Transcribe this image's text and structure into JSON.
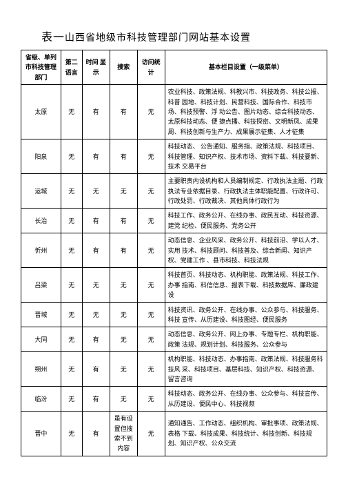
{
  "title_prefix": "表一",
  "title_main": "山西省地级市科技管理部门网站基本设置",
  "headers": {
    "col0": "省级、单列市科技管理部门",
    "col1": "第二语言",
    "col2": "时间 显示",
    "col3": "搜索",
    "col4": "访问统计",
    "col5": "基本栏目设置（一级菜单）"
  },
  "rows": [
    {
      "dept": "太原",
      "lang": "无",
      "time": "有",
      "search": "有",
      "visit": "无",
      "menu": "农业科技、政策法规、科教兴市、科技政务、科技公报、科普 园地、科技计划、民营科技、国际合作、科技市场、科技预警、浮 动公告、图片动态、综合科技动态、太原科技动态、便 捷点播、科技探密、文明新凤、成果周、科技创新与生产力、成果展示征集、人才征集"
    },
    {
      "dept": "阳泉",
      "lang": "无",
      "time": "有",
      "search": "有",
      "visit": "无",
      "menu": "科技动态、   公告通知、服务指、政策法规、科技项目、科技管理、知识产权、技术市场、资料下载、科技要新、技术 交易平台"
    },
    {
      "dept": "运城",
      "lang": "无",
      "time": "无",
      "search": "无",
      "visit": "无",
      "menu": "主要职责内设机构和人员编制规定、行政执法主题、行政执法专业依据目录、行政执法主体职能配置、行政许可、行政处罚、行政裁决、其他具体行政行为"
    },
    {
      "dept": "长治",
      "lang": "无",
      "time": "有",
      "search": "有",
      "visit": "无",
      "menu": "科技工作、政务公开、在线办事、政民互动、科技资源、建党 纪检、便民服务、党务公开"
    },
    {
      "dept": "忻州",
      "lang": "无",
      "time": "有",
      "search": "有",
      "visit": "无",
      "menu": "动态信息、企业风采、政务公开、科技前沿、学以人才、实用 技术、科技顾问、科技普及、综合新闻、知识产权、党建工作 、县市科技、科技法规"
    },
    {
      "dept": "吕梁",
      "lang": "无",
      "time": "无",
      "search": "无",
      "visit": "无",
      "menu": "科技首页、科技动态、机构职能、政策法规、科技工作、办事 指南、科信信息、报表下载、科技数据库、廉政建设"
    },
    {
      "dept": "晋城",
      "lang": "无",
      "time": "无",
      "search": "无",
      "visit": "无",
      "menu": "科技资讯、政务公开、在线办事、公众参与、科技服务、科技 宣传、从历建设、科技图经、便民服务"
    },
    {
      "dept": "大同",
      "lang": "无",
      "time": "有",
      "search": "无",
      "visit": "无",
      "menu": "动态信息、政务公开、网上办事、专题专栏、机构职能、政策 法规、规划计划、科技服务、公众参与"
    },
    {
      "dept": "朔州",
      "lang": "无",
      "time": "有",
      "search": "无",
      "visit": "无",
      "menu": "机构职能、科技动态、办事指南、政策法规、科技服务科技风 采、科技项目、基层科技、知识产权、科技资源、留言咨询"
    },
    {
      "dept": "临汾",
      "lang": "无",
      "time": "有",
      "search": "无",
      "visit": "无",
      "menu": "科技动态、政务公开、在线办事、公众参与、科技宣传、从历建设、便民中心、科技视频"
    },
    {
      "dept": "晋中",
      "lang": "无",
      "time": "有",
      "search": "虽有设置但搜索不到内容",
      "visit": "无",
      "menu": "通知通告、工作动态、组织机构、审批事项、政策法规、表格 下载、科技成果、科技统计、科技创新、科技规划、知识产权、公众交流"
    }
  ]
}
